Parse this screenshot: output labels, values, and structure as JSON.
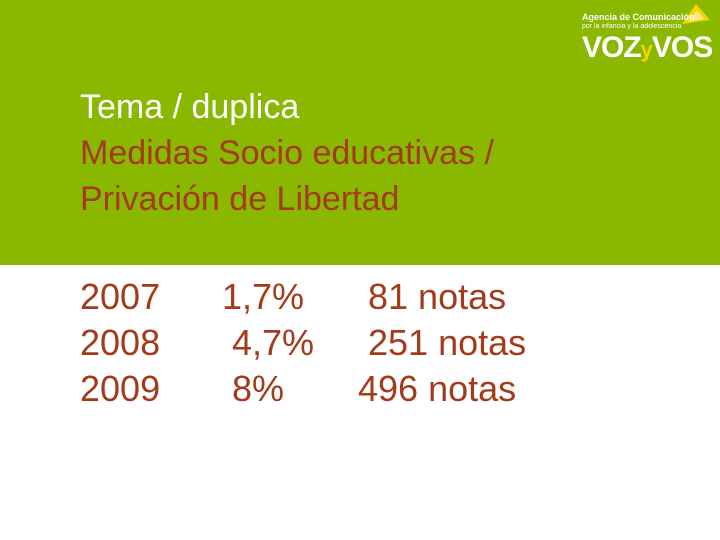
{
  "logo": {
    "line1": "Agencia de Comunicación",
    "line2": "por la infancia y la adolescencia",
    "word_voz": "VOZ",
    "word_y": "y",
    "word_vos": "VOS"
  },
  "title": {
    "main": "Tema / duplica",
    "sub1": "Medidas Socio educativas /",
    "sub2": "Privación de Libertad"
  },
  "rows": [
    {
      "year": "2007",
      "percent": "1,7%",
      "notes": "81  notas"
    },
    {
      "year": "2008",
      "percent": "4,7%",
      "notes": "251 notas"
    },
    {
      "year": "2009",
      "percent": "8%",
      "notes": "496 notas"
    }
  ],
  "colors": {
    "header_green": "#8ab800",
    "text_rust": "#a33a1a",
    "text_white": "#ffffff",
    "logo_yellow": "#f2d400"
  }
}
